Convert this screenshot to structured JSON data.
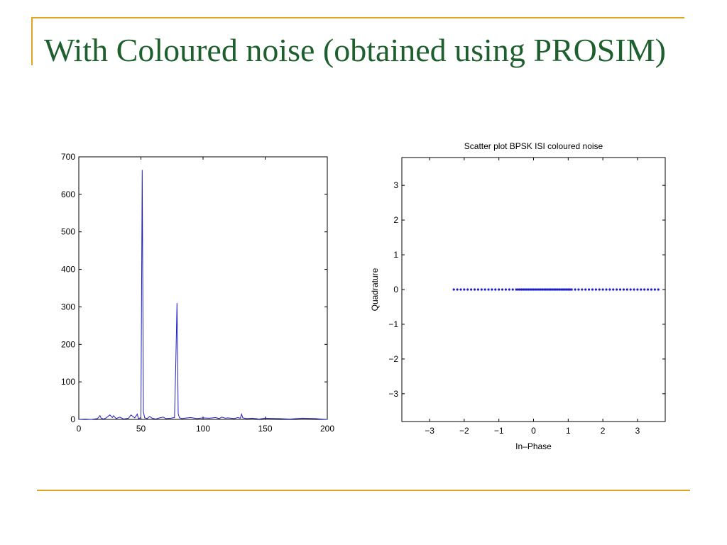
{
  "slide": {
    "title": "With Coloured noise (obtained using PROSIM)",
    "accent_color": "#e0a424",
    "title_color": "#1e5f2e"
  },
  "chart_data": [
    {
      "type": "line",
      "title": "",
      "xlabel": "",
      "ylabel": "",
      "xlim": [
        0,
        200
      ],
      "ylim": [
        0,
        700
      ],
      "xticks": [
        0,
        50,
        100,
        150,
        200
      ],
      "yticks": [
        0,
        100,
        200,
        300,
        400,
        500,
        600,
        700
      ],
      "xtick_labels": [
        "0",
        "50",
        "100",
        "150",
        "200"
      ],
      "ytick_labels": [
        "0",
        "100",
        "200",
        "300",
        "400",
        "500",
        "600",
        "700"
      ],
      "grid": false,
      "line_color": "#1f1fbf",
      "series": [
        {
          "x": [
            0,
            5,
            10,
            15,
            17,
            18,
            20,
            22,
            25,
            27,
            28,
            30,
            33,
            36,
            40,
            42,
            45,
            47,
            48,
            50,
            51,
            52,
            53,
            55,
            57,
            59,
            62,
            65,
            68,
            70,
            74,
            77,
            78,
            79,
            80,
            81,
            83,
            85,
            90,
            95,
            100,
            105,
            110,
            113,
            115,
            118,
            120,
            125,
            128,
            130,
            131,
            132,
            135,
            140,
            145,
            150,
            160,
            170,
            180,
            190,
            195,
            200
          ],
          "values": [
            0,
            1,
            0,
            2,
            10,
            3,
            1,
            4,
            12,
            5,
            10,
            2,
            6,
            1,
            3,
            12,
            4,
            14,
            2,
            5,
            665,
            20,
            4,
            2,
            8,
            3,
            1,
            4,
            6,
            2,
            3,
            5,
            140,
            310,
            15,
            4,
            2,
            3,
            5,
            2,
            4,
            3,
            5,
            2,
            6,
            3,
            4,
            2,
            5,
            3,
            14,
            4,
            2,
            3,
            1,
            3,
            2,
            1,
            3,
            2,
            1,
            0
          ]
        }
      ]
    },
    {
      "type": "scatter",
      "title": "Scatter plot BPSK ISI coloured noise",
      "xlabel": "In–Phase",
      "ylabel": "Quadrature",
      "xlim": [
        -3.8,
        3.8
      ],
      "ylim": [
        -3.8,
        3.8
      ],
      "xticks": [
        -3,
        -2,
        -1,
        0,
        1,
        2,
        3
      ],
      "yticks": [
        -3,
        -2,
        -1,
        0,
        1,
        2,
        3
      ],
      "xtick_labels": [
        "−3",
        "−2",
        "−1",
        "0",
        "1",
        "2",
        "3"
      ],
      "ytick_labels": [
        "−3",
        "−2",
        "−1",
        "0",
        "1",
        "2",
        "3"
      ],
      "grid": false,
      "marker_color": "#1f1fbf",
      "series": [
        {
          "x": [
            -2.3,
            -2.2,
            -2.1,
            -2.0,
            -1.9,
            -1.8,
            -1.7,
            -1.6,
            -1.5,
            -1.4,
            -1.3,
            -1.2,
            -1.1,
            -1.0,
            -0.9,
            -0.8,
            -0.7,
            -0.6,
            -0.5,
            -0.45,
            -0.4,
            -0.35,
            -0.3,
            -0.25,
            -0.2,
            -0.15,
            -0.1,
            -0.05,
            0.0,
            0.05,
            0.1,
            0.15,
            0.2,
            0.25,
            0.3,
            0.35,
            0.4,
            0.45,
            0.5,
            0.55,
            0.6,
            0.65,
            0.7,
            0.75,
            0.8,
            0.85,
            0.9,
            0.95,
            1.0,
            1.05,
            1.1,
            1.2,
            1.3,
            1.4,
            1.5,
            1.6,
            1.7,
            1.8,
            1.9,
            2.0,
            2.1,
            2.2,
            2.3,
            2.4,
            2.5,
            2.6,
            2.7,
            2.8,
            2.9,
            3.0,
            3.1,
            3.2,
            3.3,
            3.4,
            3.5,
            3.6
          ],
          "y": [
            0,
            0,
            0,
            0,
            0,
            0,
            0,
            0,
            0,
            0,
            0,
            0,
            0,
            0,
            0,
            0,
            0,
            0,
            0,
            0,
            0,
            0,
            0,
            0,
            0,
            0,
            0,
            0,
            0,
            0,
            0,
            0,
            0,
            0,
            0,
            0,
            0,
            0,
            0,
            0,
            0,
            0,
            0,
            0,
            0,
            0,
            0,
            0,
            0,
            0,
            0,
            0,
            0,
            0,
            0,
            0,
            0,
            0,
            0,
            0,
            0,
            0,
            0,
            0,
            0,
            0,
            0,
            0,
            0,
            0,
            0,
            0,
            0,
            0,
            0,
            0
          ]
        }
      ]
    }
  ]
}
